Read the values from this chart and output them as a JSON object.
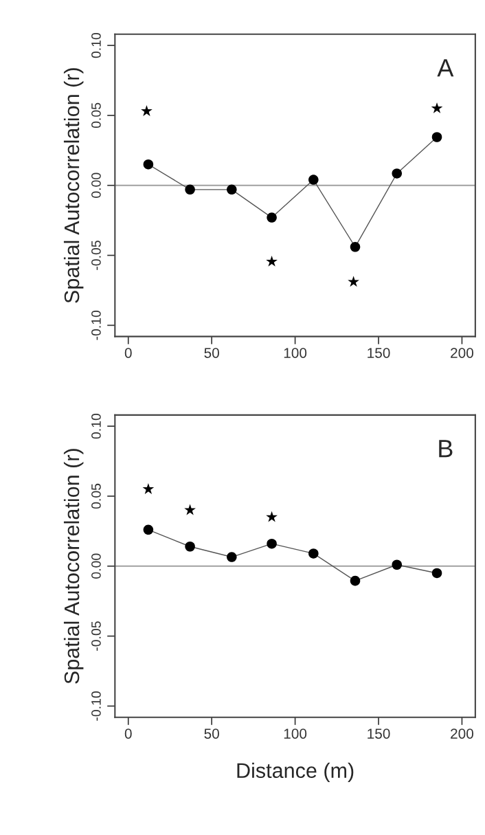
{
  "chart_data": [
    {
      "type": "line",
      "ylabel": "Spatial Autocorrelation (r)",
      "annotations": [
        "A"
      ],
      "xlim": [
        -8,
        208
      ],
      "xticks": [
        0,
        50,
        100,
        150,
        200
      ],
      "ylim": [
        -0.108,
        0.108
      ],
      "yticks": [
        {
          "value": -0.1,
          "label": "-0.10"
        },
        {
          "value": -0.05,
          "label": "-0.05"
        },
        {
          "value": 0,
          "label": "0.00"
        },
        {
          "value": 0.05,
          "label": "0.05"
        },
        {
          "value": 0.1,
          "label": "0.10"
        }
      ],
      "ref_lines": [
        {
          "axis": "y",
          "value": 0,
          "color": "#a0a0a0"
        }
      ],
      "grid": false,
      "legend": false,
      "series": [
        {
          "type": "line",
          "color": "#000000",
          "marker": "circle",
          "x": [
            12,
            37,
            62,
            86,
            111,
            136,
            161,
            185
          ],
          "values": [
            0.015,
            -0.003,
            -0.003,
            -0.023,
            0.004,
            -0.044,
            0.0085,
            0.0345
          ]
        },
        {
          "type": "scatter",
          "color": "#000000",
          "marker": "star",
          "x": [
            11,
            86,
            135,
            185
          ],
          "values": [
            0.053,
            -0.0545,
            -0.069,
            0.055
          ]
        }
      ]
    },
    {
      "type": "line",
      "xlabel": "Distance (m)",
      "ylabel": "Spatial Autocorrelation (r)",
      "annotations": [
        "B"
      ],
      "xlim": [
        -8,
        208
      ],
      "xticks": [
        0,
        50,
        100,
        150,
        200
      ],
      "ylim": [
        -0.108,
        0.108
      ],
      "yticks": [
        {
          "value": -0.1,
          "label": "-0.10"
        },
        {
          "value": -0.05,
          "label": "-0.05"
        },
        {
          "value": 0,
          "label": "0.00"
        },
        {
          "value": 0.05,
          "label": "0.05"
        },
        {
          "value": 0.1,
          "label": "0.10"
        }
      ],
      "ref_lines": [
        {
          "axis": "y",
          "value": 0,
          "color": "#a0a0a0"
        }
      ],
      "grid": false,
      "legend": false,
      "series": [
        {
          "type": "line",
          "color": "#000000",
          "marker": "circle",
          "x": [
            12,
            37,
            62,
            86,
            111,
            136,
            161,
            185
          ],
          "values": [
            0.026,
            0.014,
            0.0065,
            0.016,
            0.009,
            -0.0105,
            0.001,
            -0.005
          ]
        },
        {
          "type": "scatter",
          "color": "#000000",
          "marker": "star",
          "x": [
            12,
            37,
            86
          ],
          "values": [
            0.055,
            0.04,
            0.035
          ]
        }
      ]
    }
  ]
}
